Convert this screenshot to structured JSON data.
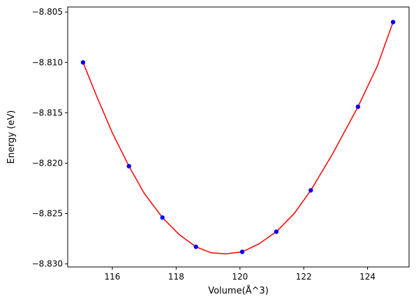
{
  "chart_data": {
    "type": "scatter",
    "title": "",
    "xlabel": "Volume(Å^3)",
    "ylabel": "Energy (eV)",
    "xlim": [
      114.6,
      125.3
    ],
    "ylim": [
      -8.8303,
      -8.8045
    ],
    "grid": false,
    "x_ticks": [
      116,
      118,
      120,
      122,
      124
    ],
    "y_ticks": [
      -8.83,
      -8.825,
      -8.82,
      -8.815,
      -8.81,
      -8.805
    ],
    "x_tick_labels": [
      "116",
      "118",
      "120",
      "122",
      "124"
    ],
    "y_tick_labels": [
      "−8.830",
      "−8.825",
      "−8.820",
      "−8.815",
      "−8.810",
      "−8.805"
    ],
    "series": [
      {
        "kind": "points",
        "color": "#0000ff",
        "x": [
          115.08,
          116.52,
          117.57,
          118.62,
          120.07,
          121.14,
          122.22,
          123.7,
          124.8
        ],
        "y": [
          -8.81,
          -8.8203,
          -8.8254,
          -8.8283,
          -8.8288,
          -8.8268,
          -8.8227,
          -8.8144,
          -8.806
        ]
      },
      {
        "kind": "fit_curve",
        "color": "#ff0000",
        "x": [
          115.08,
          115.5,
          116.0,
          116.52,
          117.0,
          117.57,
          118.1,
          118.62,
          119.1,
          119.55,
          120.07,
          120.6,
          121.14,
          121.7,
          122.22,
          122.9,
          123.7,
          124.3,
          124.8
        ],
        "y": [
          -8.81,
          -8.8133,
          -8.817,
          -8.8203,
          -8.823,
          -8.8254,
          -8.8271,
          -8.8283,
          -8.8289,
          -8.829,
          -8.8288,
          -8.828,
          -8.8268,
          -8.825,
          -8.8227,
          -8.8191,
          -8.8144,
          -8.8104,
          -8.806
        ]
      }
    ]
  }
}
